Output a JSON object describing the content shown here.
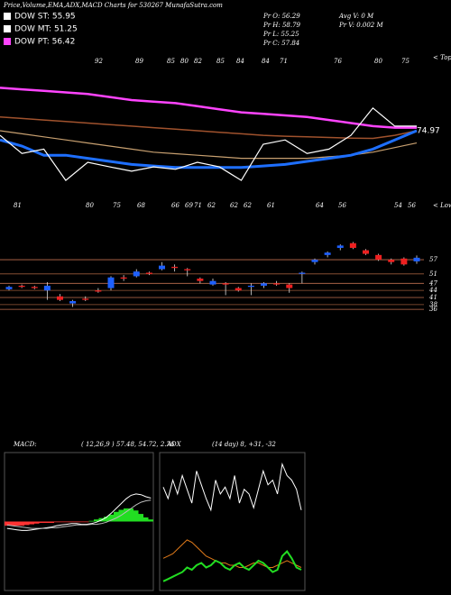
{
  "header": {
    "title": "Price,Volume,EMA,ADX,MACD Charts for 530267 MunafaSutra.com",
    "legend": [
      {
        "text": "DOW ST: 55.95",
        "color": "#ffffff"
      },
      {
        "text": "DOW MT: 51.25",
        "color": "#ffffff"
      },
      {
        "text": "DOW PT: 56.42",
        "color": "#ff44ff"
      }
    ],
    "quotes": [
      "Pr O: 56.29",
      "Pr H: 58.79",
      "Pr L: 55.25",
      "Pr C: 57.84",
      "Avg V: 0 M",
      "Pr V: 0.002 M"
    ]
  },
  "chart_data": [
    {
      "type": "line",
      "ylim": [
        50,
        100
      ],
      "last_value": 74.97,
      "tops_label": "< Tops",
      "lows_label": "< Lows",
      "tops": [
        "92",
        "89",
        "85",
        "80",
        "82",
        "85",
        "84",
        "84",
        "71",
        "76",
        "80",
        "75"
      ],
      "lows": [
        "81",
        "80",
        "75",
        "68",
        "66",
        "69",
        "71",
        "62",
        "62",
        "62",
        "61",
        "64",
        "56",
        "54",
        "56"
      ],
      "series": [
        {
          "color": "#ff44ff",
          "width": 2.5,
          "values": [
            89,
            88.5,
            88,
            87.5,
            87,
            86,
            85,
            84.5,
            84,
            83,
            82,
            81,
            80.5,
            80,
            79.5,
            78.5,
            77.5,
            76.5,
            76,
            76
          ]
        },
        {
          "color": "#a0522d",
          "width": 1.5,
          "values": [
            79.5,
            79,
            78.5,
            78,
            77.5,
            77,
            76.5,
            76,
            75.5,
            75,
            74.5,
            74,
            73.5,
            73.2,
            73,
            72.8,
            72.6,
            72.5,
            73.5,
            75
          ]
        },
        {
          "color": "#c8a070",
          "width": 1.2,
          "values": [
            75,
            74,
            73,
            72,
            71,
            70,
            69,
            68,
            67.5,
            67,
            66.5,
            66,
            66,
            66,
            66,
            66.5,
            67,
            68,
            69.5,
            71
          ]
        },
        {
          "color": "#1e6fff",
          "width": 3,
          "values": [
            72,
            70,
            67,
            67,
            66,
            65,
            64,
            63.5,
            63,
            63,
            63,
            63,
            63.5,
            64,
            65,
            66,
            67,
            69,
            72,
            75
          ]
        },
        {
          "color": "#ffffff",
          "width": 1.2,
          "values": [
            73.5,
            67.6,
            69,
            58.8,
            64.7,
            63.2,
            61.8,
            63.2,
            62.4,
            64.7,
            63.2,
            58.8,
            70.6,
            72,
            67.6,
            69,
            73.5,
            82.4,
            76.5,
            76.5
          ]
        }
      ]
    },
    {
      "type": "candlestick",
      "ylim": [
        33,
        70
      ],
      "yticks": [
        57,
        51,
        47,
        44,
        41,
        38,
        36
      ],
      "up_color": "#1e60ff",
      "down_color": "#ee2020",
      "open": [
        44.5,
        46,
        45.5,
        44,
        41.5,
        38.5,
        40.5,
        44,
        45,
        49.5,
        50,
        51.5,
        53,
        54,
        53,
        49,
        46.5,
        47,
        45,
        45.5,
        46,
        47,
        46.5,
        51,
        56,
        59,
        62,
        64,
        61,
        59,
        57,
        57.5,
        56.29
      ],
      "high": [
        46,
        46.5,
        46,
        47.5,
        42.5,
        40,
        41.5,
        45,
        50,
        50.5,
        53,
        52,
        56,
        55,
        53.5,
        49.5,
        49,
        47.5,
        45.5,
        47,
        47.5,
        48,
        47,
        52,
        57.5,
        60.5,
        63.5,
        64.5,
        61.5,
        59.5,
        57.5,
        58,
        58.79
      ],
      "low": [
        44,
        45,
        44.5,
        40,
        39.5,
        37,
        39.5,
        43,
        44,
        48,
        49.5,
        50.5,
        52.5,
        52,
        50,
        47,
        46,
        42,
        43.5,
        42,
        45,
        46,
        43,
        47,
        55,
        58,
        61,
        61.5,
        59,
        56.5,
        55,
        54.5,
        55.25
      ],
      "close": [
        45.5,
        45.5,
        45,
        46,
        40,
        39.5,
        40,
        43.5,
        49.5,
        49,
        52,
        51,
        54.5,
        53.5,
        52.5,
        48,
        48,
        46.5,
        44,
        46,
        47,
        46.5,
        45,
        51.5,
        57,
        60,
        63,
        62,
        59.5,
        57,
        56,
        55,
        57.84
      ]
    },
    {
      "type": "macd",
      "label": "MACD:",
      "params": "( 12,26,9 ) 57.48, 54.72, 2.76",
      "ylim": [
        -10,
        10
      ],
      "hist_up_color": "#22dd22",
      "hist_down_color": "#ff3333",
      "series": [
        {
          "color": "#ffffff",
          "values": [
            -1.0,
            -1.1,
            -1.2,
            -1.3,
            -1.3,
            -1.2,
            -1.1,
            -1.0,
            -0.9,
            -0.8,
            -0.6,
            -0.5,
            -0.4,
            -0.3,
            -0.3,
            -0.4,
            -0.4,
            -0.3,
            -0.1,
            0.2,
            0.6,
            1.2,
            1.9,
            2.6,
            3.3,
            3.8,
            4.0,
            3.9,
            3.6,
            3.4
          ]
        },
        {
          "color": "#bbbbbb",
          "values": [
            -0.5,
            -0.6,
            -0.7,
            -0.8,
            -0.9,
            -1.0,
            -1.0,
            -1.0,
            -1.0,
            -0.9,
            -0.9,
            -0.8,
            -0.7,
            -0.6,
            -0.5,
            -0.5,
            -0.5,
            -0.4,
            -0.4,
            -0.3,
            -0.1,
            0.2,
            0.5,
            0.9,
            1.4,
            1.9,
            2.4,
            2.8,
            3.0,
            3.1
          ]
        }
      ],
      "histogram": [
        -0.6,
        -0.6,
        -0.6,
        -0.6,
        -0.5,
        -0.4,
        -0.3,
        -0.2,
        -0.2,
        -0.2,
        -0.1,
        -0.1,
        -0.1,
        -0.1,
        -0.1,
        -0.1,
        -0.1,
        0.1,
        0.3,
        0.5,
        0.7,
        1.0,
        1.4,
        1.7,
        1.9,
        1.9,
        1.6,
        1.1,
        0.6,
        0.3
      ]
    },
    {
      "type": "adx",
      "label": "ADX",
      "params": "(14 day) 8, +31, -32",
      "ylim": [
        0,
        60
      ],
      "series": [
        {
          "color": "#ffffff",
          "values": [
            45,
            40,
            48,
            42,
            50,
            44,
            38,
            52,
            46,
            40,
            35,
            48,
            42,
            45,
            40,
            50,
            38,
            44,
            42,
            36,
            44,
            52,
            46,
            48,
            42,
            55,
            50,
            48,
            44,
            35
          ]
        },
        {
          "color": "#e07a1a",
          "values": [
            14,
            15,
            16,
            18,
            20,
            22,
            21,
            19,
            17,
            15,
            14,
            13,
            12,
            12,
            11,
            11,
            10,
            10,
            11,
            12,
            12,
            11,
            10,
            10,
            11,
            12,
            13,
            12,
            11,
            10
          ]
        },
        {
          "color": "#22dd22",
          "values": [
            4,
            5,
            6,
            7,
            8,
            10,
            9,
            11,
            12,
            10,
            11,
            13,
            12,
            10,
            9,
            11,
            12,
            10,
            9,
            11,
            13,
            12,
            10,
            8,
            9,
            15,
            17,
            14,
            10,
            9
          ]
        }
      ]
    }
  ]
}
